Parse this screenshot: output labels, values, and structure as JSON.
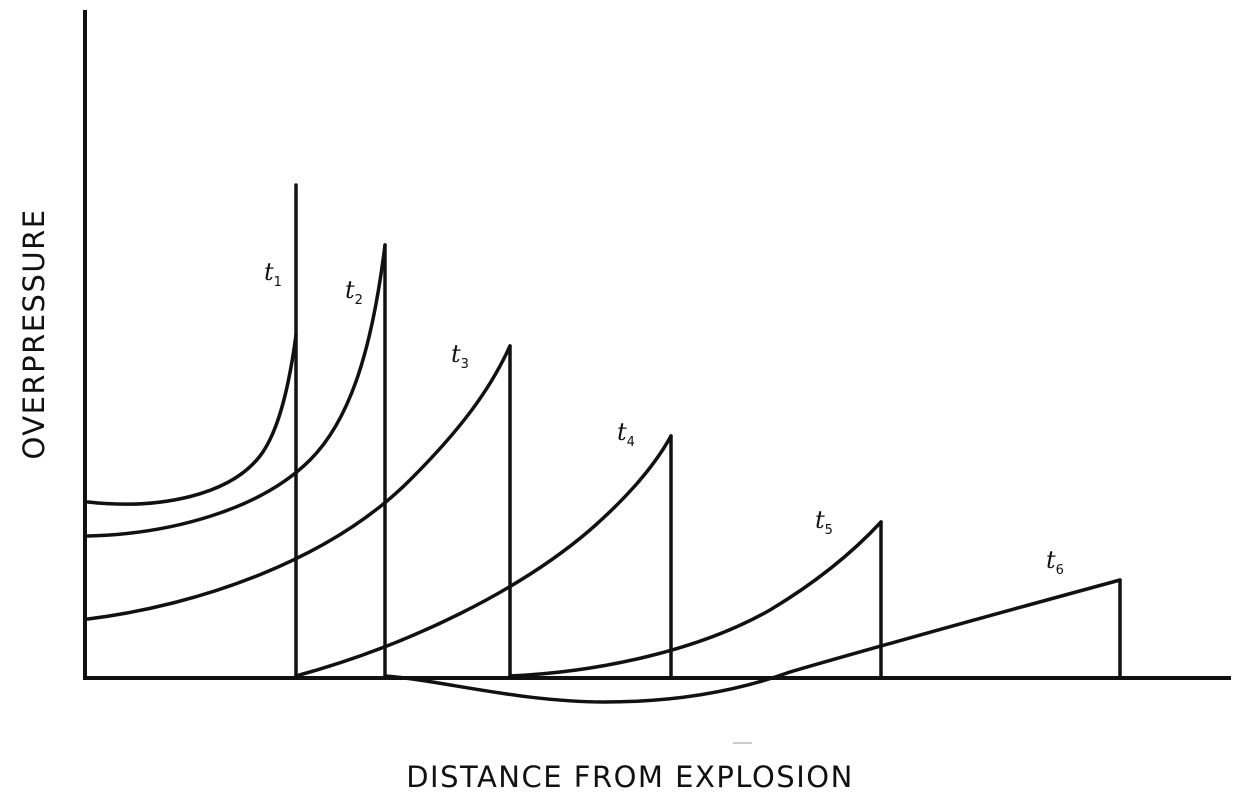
{
  "labels": {
    "x_axis": "DISTANCE FROM EXPLOSION",
    "y_axis": "OVERPRESSURE"
  },
  "curves": [
    {
      "label": "t",
      "subscript": "1"
    },
    {
      "label": "t",
      "subscript": "2"
    },
    {
      "label": "t",
      "subscript": "3"
    },
    {
      "label": "t",
      "subscript": "4"
    },
    {
      "label": "t",
      "subscript": "5"
    },
    {
      "label": "t",
      "subscript": "6"
    }
  ],
  "colors": {
    "line": "#111111",
    "background": "#ffffff"
  }
}
